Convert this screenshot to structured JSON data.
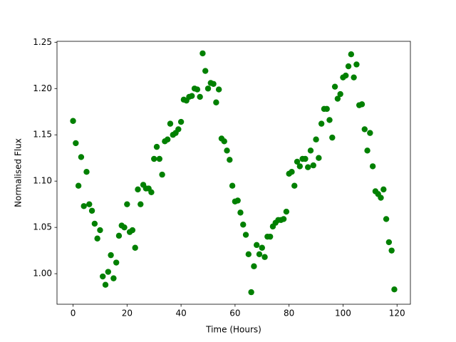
{
  "chart_data": {
    "type": "scatter",
    "x_label": "Time (Hours)",
    "y_label": "Normalised Flux",
    "color": "#008000",
    "x": [
      0,
      1,
      2,
      3,
      4,
      5,
      6,
      7,
      8,
      9,
      10,
      11,
      12,
      13,
      14,
      15,
      16,
      17,
      18,
      19,
      20,
      21,
      22,
      23,
      24,
      25,
      26,
      27,
      28,
      29,
      30,
      31,
      32,
      33,
      34,
      35,
      36,
      37,
      38,
      39,
      40,
      41,
      42,
      43,
      44,
      45,
      46,
      47,
      48,
      49,
      50,
      51,
      52,
      53,
      54,
      55,
      56,
      57,
      58,
      59,
      60,
      61,
      62,
      63,
      64,
      65,
      66,
      67,
      68,
      69,
      70,
      71,
      72,
      73,
      74,
      75,
      76,
      77,
      78,
      79,
      80,
      81,
      82,
      83,
      84,
      85,
      86,
      87,
      88,
      89,
      90,
      91,
      92,
      93,
      94,
      95,
      96,
      97,
      98,
      99,
      100,
      101,
      102,
      103,
      104,
      105,
      106,
      107,
      108,
      109,
      110,
      111,
      112,
      113,
      114,
      115,
      116,
      117,
      118,
      119
    ],
    "values": [
      1.165,
      1.141,
      1.095,
      1.126,
      1.073,
      1.11,
      1.075,
      1.068,
      1.054,
      1.038,
      1.047,
      0.997,
      0.988,
      1.002,
      1.02,
      0.995,
      1.012,
      1.041,
      1.052,
      1.05,
      1.075,
      1.045,
      1.047,
      1.028,
      1.091,
      1.075,
      1.096,
      1.092,
      1.092,
      1.088,
      1.124,
      1.137,
      1.124,
      1.107,
      1.143,
      1.145,
      1.162,
      1.15,
      1.152,
      1.156,
      1.164,
      1.188,
      1.187,
      1.191,
      1.192,
      1.2,
      1.199,
      1.191,
      1.238,
      1.219,
      1.2,
      1.206,
      1.205,
      1.185,
      1.199,
      1.146,
      1.143,
      1.133,
      1.123,
      1.095,
      1.078,
      1.079,
      1.066,
      1.053,
      1.042,
      1.021,
      0.98,
      1.008,
      1.031,
      1.021,
      1.028,
      1.018,
      1.04,
      1.04,
      1.051,
      1.055,
      1.058,
      1.058,
      1.059,
      1.067,
      1.108,
      1.11,
      1.095,
      1.121,
      1.116,
      1.124,
      1.124,
      1.115,
      1.133,
      1.117,
      1.145,
      1.125,
      1.162,
      1.178,
      1.178,
      1.166,
      1.147,
      1.202,
      1.189,
      1.194,
      1.212,
      1.214,
      1.224,
      1.237,
      1.212,
      1.226,
      1.182,
      1.183,
      1.156,
      1.133,
      1.152,
      1.116,
      1.089,
      1.086,
      1.082,
      1.091,
      1.059,
      1.034,
      1.025,
      0.983
    ],
    "xlim": [
      -5.95,
      124.95
    ],
    "ylim": [
      0.967,
      1.251
    ],
    "xticks": [
      0,
      20,
      40,
      60,
      80,
      100,
      120
    ],
    "yticks": [
      {
        "value": 1,
        "label": "1.00"
      },
      1.05,
      {
        "value": 1.1,
        "label": "1.10"
      },
      1.15,
      {
        "value": 1.2,
        "label": "1.20"
      },
      1.25
    ]
  }
}
